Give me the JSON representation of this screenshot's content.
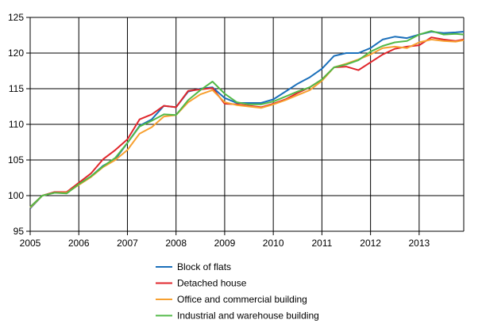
{
  "chart_data": {
    "type": "line",
    "title": "",
    "xlabel": "",
    "ylabel": "",
    "xlim": [
      2005,
      2013.917
    ],
    "ylim": [
      95,
      125
    ],
    "yticks": [
      95,
      100,
      105,
      110,
      115,
      120,
      125
    ],
    "xticks": [
      2005,
      2006,
      2007,
      2008,
      2009,
      2010,
      2011,
      2012,
      2013
    ],
    "xtick_labels": [
      "2005",
      "2006",
      "2007",
      "2008",
      "2009",
      "2010",
      "2011",
      "2012",
      "2013"
    ],
    "ytick_labels": [
      "95",
      "100",
      "105",
      "110",
      "115",
      "120",
      "125"
    ],
    "grid": true,
    "legend_position": "bottom",
    "x": [
      2005.0,
      2005.25,
      2005.5,
      2005.75,
      2006.0,
      2006.25,
      2006.5,
      2006.75,
      2007.0,
      2007.25,
      2007.5,
      2007.75,
      2008.0,
      2008.25,
      2008.5,
      2008.75,
      2009.0,
      2009.25,
      2009.5,
      2009.75,
      2010.0,
      2010.25,
      2010.5,
      2010.75,
      2011.0,
      2011.25,
      2011.5,
      2011.75,
      2012.0,
      2012.25,
      2012.5,
      2012.75,
      2013.0,
      2013.25,
      2013.5,
      2013.75,
      2013.917
    ],
    "series": [
      {
        "name": "Block of flats",
        "color": "#1a6fba",
        "values": [
          98.2,
          100.0,
          100.4,
          100.5,
          101.6,
          102.7,
          104.2,
          105.1,
          107.4,
          109.8,
          110.7,
          112.6,
          112.4,
          114.6,
          115.0,
          115.2,
          113.7,
          113.0,
          113.0,
          113.0,
          113.5,
          114.6,
          115.7,
          116.6,
          117.8,
          119.6,
          120.0,
          120.0,
          120.7,
          121.9,
          122.3,
          122.1,
          122.6,
          123.0,
          122.8,
          122.9,
          123.0
        ]
      },
      {
        "name": "Detached house",
        "color": "#e0262b",
        "values": [
          98.4,
          100.0,
          100.5,
          100.5,
          101.8,
          103.1,
          105.1,
          106.4,
          107.9,
          110.7,
          111.4,
          112.6,
          112.4,
          114.7,
          114.9,
          115.1,
          112.9,
          112.8,
          112.6,
          112.4,
          112.9,
          113.5,
          114.4,
          115.2,
          116.3,
          118.0,
          118.1,
          117.6,
          118.7,
          119.8,
          120.6,
          120.9,
          121.1,
          122.2,
          121.9,
          121.7,
          121.9
        ]
      },
      {
        "name": "Office and commercial building",
        "color": "#f7a030",
        "values": [
          98.3,
          100.0,
          100.4,
          100.4,
          101.5,
          102.6,
          104.0,
          105.0,
          106.4,
          108.7,
          109.6,
          111.1,
          111.3,
          113.1,
          114.2,
          114.8,
          113.1,
          112.7,
          112.5,
          112.3,
          112.8,
          113.4,
          114.1,
          114.8,
          116.1,
          118.0,
          118.5,
          119.1,
          119.8,
          120.7,
          120.9,
          120.7,
          121.5,
          121.9,
          121.7,
          121.6,
          121.8
        ]
      },
      {
        "name": "Industrial and warehouse  building",
        "color": "#52b947",
        "values": [
          98.4,
          100.0,
          100.4,
          100.3,
          101.6,
          102.7,
          104.1,
          105.3,
          107.4,
          109.7,
          110.5,
          111.4,
          111.3,
          113.4,
          114.8,
          116.0,
          114.3,
          113.1,
          112.8,
          112.8,
          113.2,
          113.9,
          114.6,
          115.2,
          116.3,
          118.0,
          118.4,
          119.0,
          120.2,
          121.0,
          121.5,
          121.7,
          122.6,
          123.1,
          122.6,
          122.7,
          122.6
        ]
      }
    ]
  }
}
